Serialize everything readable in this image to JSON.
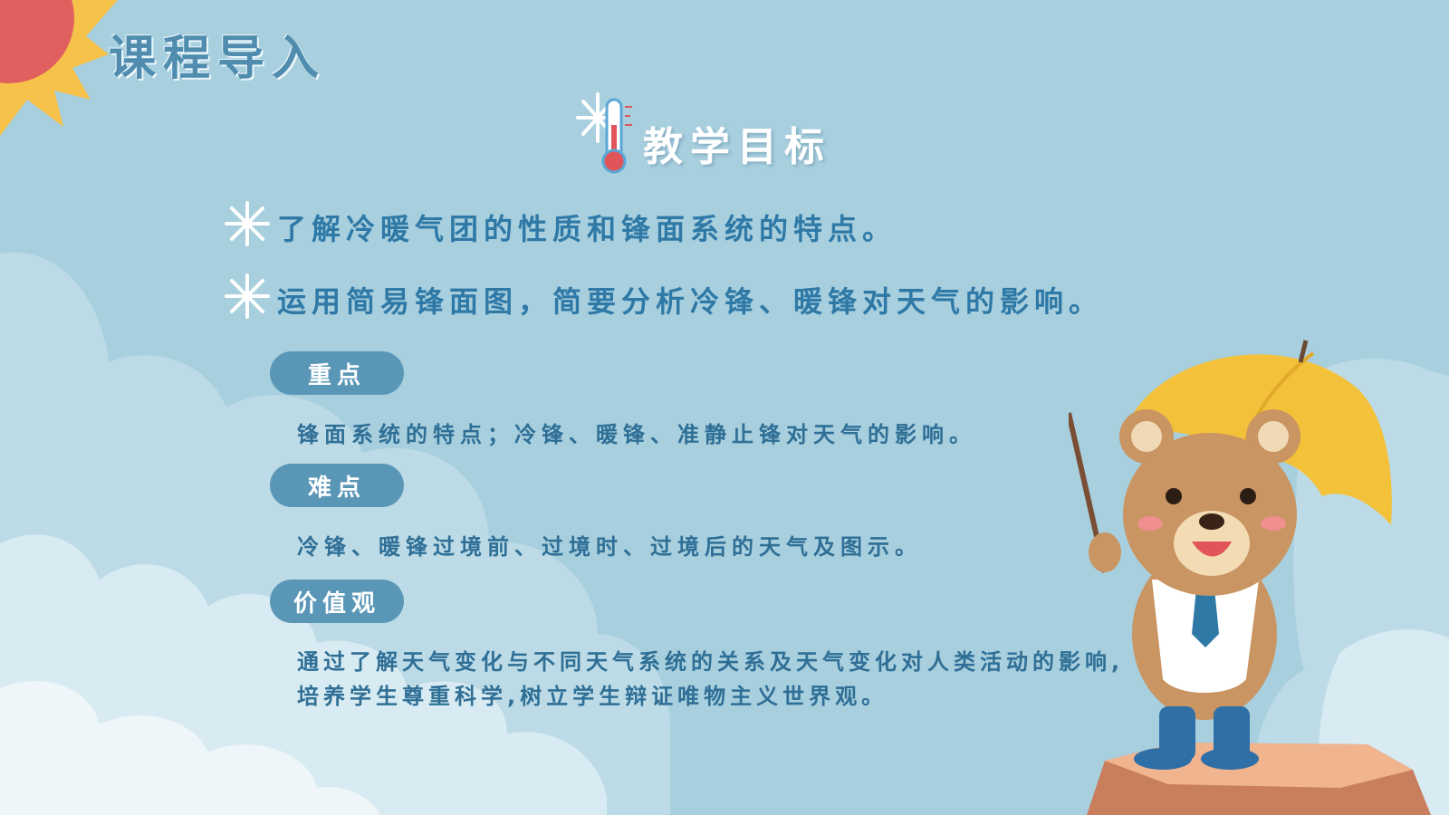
{
  "slide": {
    "title": "课程导入",
    "goal_title": "教学目标",
    "objectives": [
      "了解冷暖气团的性质和锋面系统的特点。",
      "运用简易锋面图，简要分析冷锋、暖锋对天气的影响。"
    ],
    "sections": [
      {
        "label": "重点",
        "text": "锋面系统的特点；冷锋、暖锋、准静止锋对天气的影响。"
      },
      {
        "label": "难点",
        "text": "冷锋、暖锋过境前、过境时、过境后的天气及图示。"
      },
      {
        "label": "价值观",
        "text": "通过了解天气变化与不同天气系统的关系及天气变化对人类活动的影响,培养学生尊重科学,树立学生辩证唯物主义世界观。"
      }
    ]
  },
  "colors": {
    "background": "#a8cfde",
    "accent": "#2f79a7",
    "pill": "#5a97b7"
  },
  "icons": [
    "sun-icon",
    "thermometer-snowflake-icon",
    "snowflake-icon",
    "bear-umbrella-illustration"
  ]
}
